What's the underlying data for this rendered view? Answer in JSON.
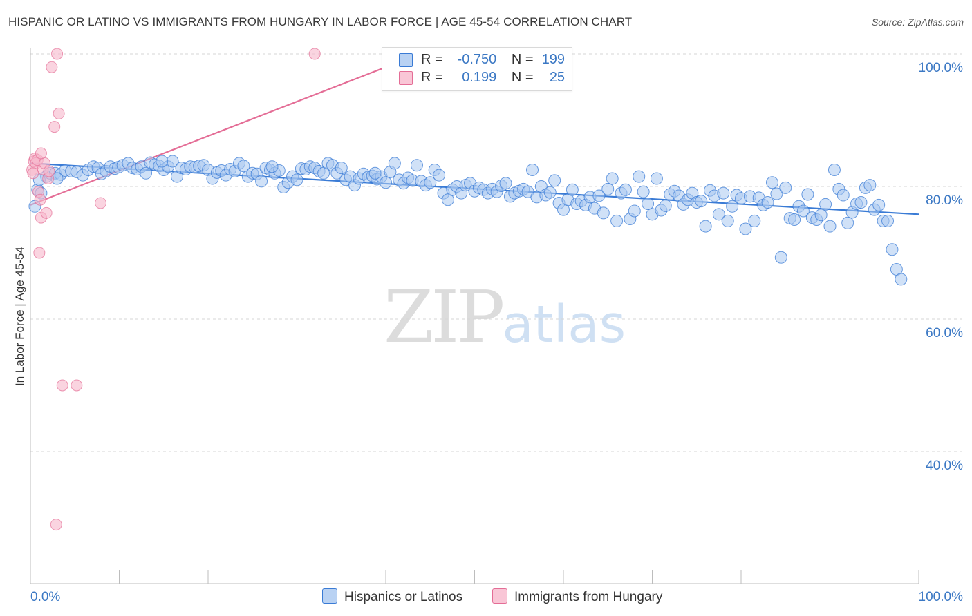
{
  "title": "HISPANIC OR LATINO VS IMMIGRANTS FROM HUNGARY IN LABOR FORCE | AGE 45-54 CORRELATION CHART",
  "source": "Source: ZipAtlas.com",
  "watermark": {
    "zip": "ZIP",
    "atlas": "atlas"
  },
  "colors": {
    "blue": "#3a7bd5",
    "blue_fill": "#a9c8f0",
    "pink": "#e46d96",
    "pink_fill": "#f7b8cb",
    "axis_label": "#3b78c4"
  },
  "legend": {
    "rows": [
      {
        "r_label": "R =",
        "r_value": "-0.750",
        "n_label": "N =",
        "n_value": "199"
      },
      {
        "r_label": "R =",
        "r_value": "0.199",
        "n_label": "N =",
        "n_value": "25"
      }
    ]
  },
  "bottom_legend": {
    "blue": "Hispanics or Latinos",
    "pink": "Immigrants from Hungary"
  },
  "chart_data": {
    "type": "scatter",
    "title": "HISPANIC OR LATINO VS IMMIGRANTS FROM HUNGARY IN LABOR FORCE | AGE 45-54 CORRELATION CHART",
    "xlabel": "",
    "ylabel": "In Labor Force | Age 45-54",
    "xlim": [
      0,
      100
    ],
    "ylim": [
      20,
      102
    ],
    "x_tick_labels": [
      "0.0%",
      "100.0%"
    ],
    "y_ticks": [
      40,
      60,
      80,
      100
    ],
    "y_tick_labels": [
      "40.0%",
      "60.0%",
      "80.0%",
      "100.0%"
    ],
    "grid": true,
    "legend_position": "top-center",
    "series": [
      {
        "name": "Hispanics or Latinos",
        "color": "#3a7bd5",
        "r": -0.75,
        "n": 199,
        "trend": {
          "x": [
            0,
            100
          ],
          "y": [
            83.5,
            75.8
          ]
        },
        "points": [
          [
            0.5,
            77.0
          ],
          [
            0.8,
            79.5
          ],
          [
            1.2,
            79.0
          ],
          [
            1.8,
            81.5
          ],
          [
            2.2,
            82.0
          ],
          [
            2.8,
            82.0
          ],
          [
            3.4,
            81.8
          ],
          [
            3.9,
            82.4
          ],
          [
            4.6,
            82.3
          ],
          [
            5.2,
            82.2
          ],
          [
            5.9,
            81.7
          ],
          [
            6.5,
            82.5
          ],
          [
            7.1,
            83.0
          ],
          [
            7.6,
            82.8
          ],
          [
            8.0,
            81.9
          ],
          [
            8.5,
            82.3
          ],
          [
            9.0,
            83.0
          ],
          [
            9.5,
            82.7
          ],
          [
            9.9,
            82.9
          ],
          [
            10.4,
            83.2
          ],
          [
            11.0,
            83.5
          ],
          [
            11.5,
            82.8
          ],
          [
            12.0,
            82.6
          ],
          [
            12.5,
            83.0
          ],
          [
            13.0,
            82.0
          ],
          [
            13.5,
            83.6
          ],
          [
            14.0,
            83.3
          ],
          [
            14.5,
            83.1
          ],
          [
            15.0,
            82.5
          ],
          [
            15.5,
            83.0
          ],
          [
            16.0,
            83.8
          ],
          [
            16.5,
            81.5
          ],
          [
            17.0,
            82.8
          ],
          [
            17.5,
            82.6
          ],
          [
            18.0,
            83.0
          ],
          [
            18.5,
            82.9
          ],
          [
            19.0,
            83.1
          ],
          [
            19.5,
            83.2
          ],
          [
            20.0,
            82.5
          ],
          [
            20.5,
            81.2
          ],
          [
            21.0,
            82.1
          ],
          [
            21.5,
            82.4
          ],
          [
            22.0,
            81.7
          ],
          [
            22.5,
            82.6
          ],
          [
            23.0,
            82.3
          ],
          [
            23.5,
            83.5
          ],
          [
            24.0,
            83.1
          ],
          [
            24.5,
            81.5
          ],
          [
            25.0,
            82.0
          ],
          [
            25.5,
            81.9
          ],
          [
            26.0,
            80.8
          ],
          [
            26.5,
            82.8
          ],
          [
            27.0,
            82.5
          ],
          [
            27.5,
            82.0
          ],
          [
            28.0,
            82.4
          ],
          [
            28.5,
            79.9
          ],
          [
            29.0,
            80.6
          ],
          [
            29.5,
            81.5
          ],
          [
            30.0,
            81.0
          ],
          [
            30.5,
            82.7
          ],
          [
            31.0,
            82.6
          ],
          [
            31.5,
            83.0
          ],
          [
            32.0,
            82.8
          ],
          [
            32.5,
            82.3
          ],
          [
            33.0,
            82.0
          ],
          [
            33.5,
            83.5
          ],
          [
            34.0,
            83.2
          ],
          [
            34.5,
            82.0
          ],
          [
            35.0,
            82.8
          ],
          [
            35.5,
            81.0
          ],
          [
            36.0,
            81.5
          ],
          [
            36.5,
            80.2
          ],
          [
            37.0,
            81.2
          ],
          [
            37.5,
            81.9
          ],
          [
            38.0,
            81.4
          ],
          [
            38.5,
            81.6
          ],
          [
            39.0,
            81.1
          ],
          [
            39.5,
            81.5
          ],
          [
            40.0,
            80.6
          ],
          [
            40.5,
            82.2
          ],
          [
            41.0,
            83.5
          ],
          [
            41.5,
            81.0
          ],
          [
            42.0,
            80.5
          ],
          [
            42.5,
            81.3
          ],
          [
            43.0,
            80.9
          ],
          [
            43.5,
            83.2
          ],
          [
            44.0,
            80.8
          ],
          [
            44.5,
            80.2
          ],
          [
            45.0,
            80.6
          ],
          [
            45.5,
            82.5
          ],
          [
            46.0,
            81.7
          ],
          [
            46.5,
            79.0
          ],
          [
            47.0,
            78.0
          ],
          [
            47.5,
            79.5
          ],
          [
            48.0,
            80.0
          ],
          [
            48.5,
            79.0
          ],
          [
            49.0,
            80.2
          ],
          [
            49.5,
            80.5
          ],
          [
            50.0,
            79.3
          ],
          [
            50.5,
            79.8
          ],
          [
            51.0,
            79.5
          ],
          [
            51.5,
            79.0
          ],
          [
            52.0,
            79.6
          ],
          [
            52.5,
            79.2
          ],
          [
            53.0,
            80.1
          ],
          [
            53.5,
            80.5
          ],
          [
            54.0,
            78.5
          ],
          [
            54.5,
            79.0
          ],
          [
            55.0,
            79.3
          ],
          [
            55.5,
            79.6
          ],
          [
            56.0,
            79.2
          ],
          [
            56.5,
            82.5
          ],
          [
            57.0,
            78.4
          ],
          [
            57.5,
            80.0
          ],
          [
            58.0,
            78.7
          ],
          [
            58.5,
            79.1
          ],
          [
            59.0,
            80.9
          ],
          [
            59.5,
            77.5
          ],
          [
            60.0,
            76.5
          ],
          [
            60.5,
            78.0
          ],
          [
            61.0,
            79.5
          ],
          [
            61.5,
            77.4
          ],
          [
            62.0,
            77.8
          ],
          [
            62.5,
            77.2
          ],
          [
            63.0,
            78.4
          ],
          [
            63.5,
            76.7
          ],
          [
            64.0,
            78.6
          ],
          [
            64.5,
            76.0
          ],
          [
            65.0,
            79.6
          ],
          [
            65.5,
            81.2
          ],
          [
            66.0,
            74.8
          ],
          [
            66.5,
            79.0
          ],
          [
            67.0,
            79.5
          ],
          [
            67.5,
            75.1
          ],
          [
            68.0,
            76.3
          ],
          [
            68.5,
            81.5
          ],
          [
            69.0,
            79.2
          ],
          [
            69.5,
            77.4
          ],
          [
            70.0,
            75.8
          ],
          [
            70.5,
            81.2
          ],
          [
            71.0,
            76.4
          ],
          [
            71.5,
            77.1
          ],
          [
            72.0,
            78.8
          ],
          [
            72.5,
            79.3
          ],
          [
            73.0,
            78.6
          ],
          [
            73.5,
            77.3
          ],
          [
            74.0,
            78.0
          ],
          [
            74.5,
            79.0
          ],
          [
            75.0,
            77.6
          ],
          [
            75.5,
            77.8
          ],
          [
            76.0,
            74.0
          ],
          [
            76.5,
            79.4
          ],
          [
            77.0,
            78.6
          ],
          [
            77.5,
            75.8
          ],
          [
            78.0,
            79.0
          ],
          [
            78.5,
            74.8
          ],
          [
            79.0,
            77.0
          ],
          [
            79.5,
            78.7
          ],
          [
            80.0,
            78.2
          ],
          [
            80.5,
            73.6
          ],
          [
            81.0,
            78.5
          ],
          [
            81.5,
            74.8
          ],
          [
            82.0,
            78.3
          ],
          [
            82.5,
            77.2
          ],
          [
            83.0,
            77.6
          ],
          [
            83.5,
            80.6
          ],
          [
            84.0,
            78.9
          ],
          [
            84.5,
            69.3
          ],
          [
            85.0,
            79.8
          ],
          [
            85.5,
            75.2
          ],
          [
            86.0,
            75.0
          ],
          [
            86.5,
            77.0
          ],
          [
            87.0,
            76.3
          ],
          [
            87.5,
            78.8
          ],
          [
            88.0,
            75.3
          ],
          [
            88.5,
            75.0
          ],
          [
            89.0,
            75.7
          ],
          [
            89.5,
            77.3
          ],
          [
            90.0,
            74.0
          ],
          [
            90.5,
            82.5
          ],
          [
            91.0,
            79.6
          ],
          [
            91.5,
            78.7
          ],
          [
            92.0,
            74.5
          ],
          [
            92.5,
            76.1
          ],
          [
            93.0,
            77.4
          ],
          [
            93.5,
            77.6
          ],
          [
            94.0,
            79.8
          ],
          [
            94.5,
            80.2
          ],
          [
            95.0,
            76.5
          ],
          [
            95.5,
            77.2
          ],
          [
            96.0,
            74.8
          ],
          [
            96.5,
            74.8
          ],
          [
            97.0,
            70.5
          ],
          [
            97.5,
            67.5
          ],
          [
            98.0,
            66.0
          ],
          [
            1.0,
            81.0
          ],
          [
            3.0,
            81.2
          ],
          [
            14.8,
            83.8
          ],
          [
            27.2,
            83.0
          ],
          [
            38.8,
            82.0
          ]
        ]
      },
      {
        "name": "Immigrants from Hungary",
        "color": "#e46d96",
        "r": 0.199,
        "n": 25,
        "trend": {
          "x": [
            0,
            40
          ],
          "y": [
            77.2,
            98.0
          ]
        },
        "points": [
          [
            0.2,
            82.5
          ],
          [
            0.4,
            83.8
          ],
          [
            0.5,
            84.2
          ],
          [
            0.6,
            83.5
          ],
          [
            0.8,
            84.0
          ],
          [
            0.9,
            79.2
          ],
          [
            1.1,
            78.0
          ],
          [
            1.2,
            75.3
          ],
          [
            1.4,
            82.6
          ],
          [
            1.6,
            83.5
          ],
          [
            1.8,
            76.0
          ],
          [
            2.0,
            81.2
          ],
          [
            2.1,
            82.3
          ],
          [
            2.4,
            98.0
          ],
          [
            2.7,
            89.0
          ],
          [
            3.0,
            100.0
          ],
          [
            3.2,
            91.0
          ],
          [
            3.6,
            50.0
          ],
          [
            5.2,
            50.0
          ],
          [
            7.9,
            77.5
          ],
          [
            32.0,
            100.0
          ],
          [
            1.0,
            70.0
          ],
          [
            2.9,
            29.0
          ],
          [
            1.2,
            85.0
          ],
          [
            0.3,
            82.0
          ]
        ]
      }
    ]
  }
}
